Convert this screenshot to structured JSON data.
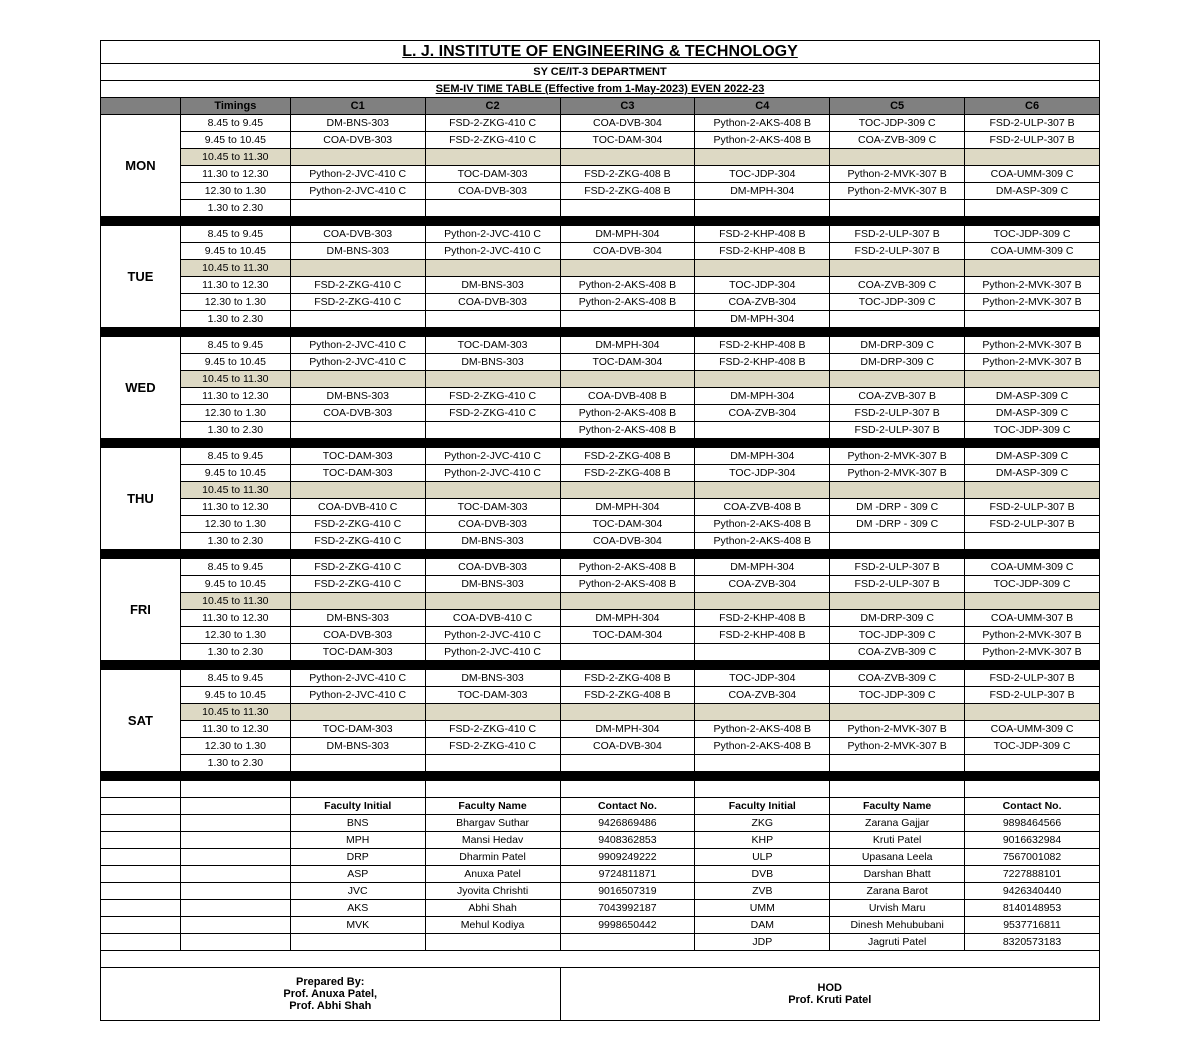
{
  "header": {
    "title": "L. J. INSTITUTE OF ENGINEERING & TECHNOLOGY",
    "dept": "SY CE/IT-3 DEPARTMENT",
    "sem": "SEM-IV TIME TABLE (Effective from 1-May-2023) EVEN 2022-23"
  },
  "columns": [
    "Timings",
    "C1",
    "C2",
    "C3",
    "C4",
    "C5",
    "C6"
  ],
  "slots": [
    "8.45 to 9.45",
    "9.45 to 10.45",
    "10.45 to 11.30",
    "11.30 to 12.30",
    "12.30 to 1.30",
    "1.30 to 2.30"
  ],
  "days": [
    {
      "name": "MON",
      "rows": [
        [
          "DM-BNS-303",
          "FSD-2-ZKG-410 C",
          "COA-DVB-304",
          "Python-2-AKS-408 B",
          "TOC-JDP-309 C",
          "FSD-2-ULP-307 B"
        ],
        [
          "COA-DVB-303",
          "FSD-2-ZKG-410 C",
          "TOC-DAM-304",
          "Python-2-AKS-408 B",
          "COA-ZVB-309 C",
          "FSD-2-ULP-307 B"
        ],
        [
          "",
          "",
          "",
          "",
          "",
          ""
        ],
        [
          "Python-2-JVC-410 C",
          "TOC-DAM-303",
          "FSD-2-ZKG-408 B",
          "TOC-JDP-304",
          "Python-2-MVK-307 B",
          "COA-UMM-309 C"
        ],
        [
          "Python-2-JVC-410 C",
          "COA-DVB-303",
          "FSD-2-ZKG-408 B",
          "DM-MPH-304",
          "Python-2-MVK-307 B",
          "DM-ASP-309 C"
        ],
        [
          "",
          "",
          "",
          "",
          "",
          ""
        ]
      ]
    },
    {
      "name": "TUE",
      "rows": [
        [
          "COA-DVB-303",
          "Python-2-JVC-410 C",
          "DM-MPH-304",
          "FSD-2-KHP-408 B",
          "FSD-2-ULP-307 B",
          "TOC-JDP-309 C"
        ],
        [
          "DM-BNS-303",
          "Python-2-JVC-410 C",
          "COA-DVB-304",
          "FSD-2-KHP-408 B",
          "FSD-2-ULP-307 B",
          "COA-UMM-309 C"
        ],
        [
          "",
          "",
          "",
          "",
          "",
          ""
        ],
        [
          "FSD-2-ZKG-410 C",
          "DM-BNS-303",
          "Python-2-AKS-408 B",
          "TOC-JDP-304",
          "COA-ZVB-309 C",
          "Python-2-MVK-307 B"
        ],
        [
          "FSD-2-ZKG-410 C",
          "COA-DVB-303",
          "Python-2-AKS-408 B",
          "COA-ZVB-304",
          "TOC-JDP-309 C",
          "Python-2-MVK-307 B"
        ],
        [
          "",
          "",
          "",
          "DM-MPH-304",
          "",
          ""
        ]
      ]
    },
    {
      "name": "WED",
      "rows": [
        [
          "Python-2-JVC-410 C",
          "TOC-DAM-303",
          "DM-MPH-304",
          "FSD-2-KHP-408 B",
          "DM-DRP-309 C",
          "Python-2-MVK-307 B"
        ],
        [
          "Python-2-JVC-410 C",
          "DM-BNS-303",
          "TOC-DAM-304",
          "FSD-2-KHP-408 B",
          "DM-DRP-309 C",
          "Python-2-MVK-307 B"
        ],
        [
          "",
          "",
          "",
          "",
          "",
          ""
        ],
        [
          "DM-BNS-303",
          "FSD-2-ZKG-410 C",
          "COA-DVB-408 B",
          "DM-MPH-304",
          "COA-ZVB-307 B",
          "DM-ASP-309 C"
        ],
        [
          "COA-DVB-303",
          "FSD-2-ZKG-410 C",
          "Python-2-AKS-408 B",
          "COA-ZVB-304",
          "FSD-2-ULP-307 B",
          "DM-ASP-309 C"
        ],
        [
          "",
          "",
          "Python-2-AKS-408 B",
          "",
          "FSD-2-ULP-307 B",
          "TOC-JDP-309 C"
        ]
      ]
    },
    {
      "name": "THU",
      "rows": [
        [
          "TOC-DAM-303",
          "Python-2-JVC-410 C",
          "FSD-2-ZKG-408 B",
          "DM-MPH-304",
          "Python-2-MVK-307 B",
          "DM-ASP-309 C"
        ],
        [
          "TOC-DAM-303",
          "Python-2-JVC-410 C",
          "FSD-2-ZKG-408 B",
          "TOC-JDP-304",
          "Python-2-MVK-307 B",
          "DM-ASP-309 C"
        ],
        [
          "",
          "",
          "",
          "",
          "",
          ""
        ],
        [
          "COA-DVB-410 C",
          "TOC-DAM-303",
          "DM-MPH-304",
          "COA-ZVB-408 B",
          "DM -DRP - 309 C",
          "FSD-2-ULP-307 B"
        ],
        [
          "FSD-2-ZKG-410 C",
          "COA-DVB-303",
          "TOC-DAM-304",
          "Python-2-AKS-408 B",
          "DM -DRP - 309 C",
          "FSD-2-ULP-307 B"
        ],
        [
          "FSD-2-ZKG-410 C",
          "DM-BNS-303",
          "COA-DVB-304",
          "Python-2-AKS-408 B",
          "",
          ""
        ]
      ]
    },
    {
      "name": "FRI",
      "rows": [
        [
          "FSD-2-ZKG-410 C",
          "COA-DVB-303",
          "Python-2-AKS-408 B",
          "DM-MPH-304",
          "FSD-2-ULP-307 B",
          "COA-UMM-309 C"
        ],
        [
          "FSD-2-ZKG-410 C",
          "DM-BNS-303",
          "Python-2-AKS-408 B",
          "COA-ZVB-304",
          "FSD-2-ULP-307 B",
          "TOC-JDP-309 C"
        ],
        [
          "",
          "",
          "",
          "",
          "",
          ""
        ],
        [
          "DM-BNS-303",
          "COA-DVB-410 C",
          "DM-MPH-304",
          "FSD-2-KHP-408 B",
          "DM-DRP-309 C",
          "COA-UMM-307 B"
        ],
        [
          "COA-DVB-303",
          "Python-2-JVC-410 C",
          "TOC-DAM-304",
          "FSD-2-KHP-408 B",
          "TOC-JDP-309 C",
          "Python-2-MVK-307 B"
        ],
        [
          "TOC-DAM-303",
          "Python-2-JVC-410 C",
          "",
          "",
          "COA-ZVB-309 C",
          "Python-2-MVK-307 B"
        ]
      ]
    },
    {
      "name": "SAT",
      "rows": [
        [
          "Python-2-JVC-410 C",
          "DM-BNS-303",
          "FSD-2-ZKG-408 B",
          "TOC-JDP-304",
          "COA-ZVB-309 C",
          "FSD-2-ULP-307 B"
        ],
        [
          "Python-2-JVC-410 C",
          "TOC-DAM-303",
          "FSD-2-ZKG-408 B",
          "COA-ZVB-304",
          "TOC-JDP-309 C",
          "FSD-2-ULP-307 B"
        ],
        [
          "",
          "",
          "",
          "",
          "",
          ""
        ],
        [
          "TOC-DAM-303",
          "FSD-2-ZKG-410 C",
          "DM-MPH-304",
          "Python-2-AKS-408 B",
          "Python-2-MVK-307 B",
          "COA-UMM-309 C"
        ],
        [
          "DM-BNS-303",
          "FSD-2-ZKG-410 C",
          "COA-DVB-304",
          "Python-2-AKS-408 B",
          "Python-2-MVK-307 B",
          "TOC-JDP-309 C"
        ],
        [
          "",
          "",
          "",
          "",
          "",
          ""
        ]
      ]
    }
  ],
  "facultyHeaders": [
    "Faculty Initial",
    "Faculty Name",
    "Contact No.",
    "Faculty Initial",
    "Faculty Name",
    "Contact No."
  ],
  "faculty": [
    [
      "BNS",
      "Bhargav Suthar",
      "9426869486",
      "ZKG",
      "Zarana Gajjar",
      "9898464566"
    ],
    [
      "MPH",
      "Mansi Hedav",
      "9408362853",
      "KHP",
      "Kruti Patel",
      "9016632984"
    ],
    [
      "DRP",
      "Dharmin Patel",
      "9909249222",
      "ULP",
      "Upasana Leela",
      "7567001082"
    ],
    [
      "ASP",
      "Anuxa Patel",
      "9724811871",
      "DVB",
      "Darshan Bhatt",
      "7227888101"
    ],
    [
      "JVC",
      "Jyovita Chrishti",
      "9016507319",
      "ZVB",
      "Zarana Barot",
      "9426340440"
    ],
    [
      "AKS",
      "Abhi Shah",
      "7043992187",
      "UMM",
      "Urvish Maru",
      "8140148953"
    ],
    [
      "MVK",
      "Mehul Kodiya",
      "9998650442",
      "DAM",
      "Dinesh Mehububani",
      "9537716811"
    ],
    [
      "",
      "",
      "",
      "JDP",
      "Jagruti Patel",
      "8320573183"
    ]
  ],
  "signatures": {
    "left": "Prepared By:\nProf. Anuxa Patel,\nProf. Abhi Shah",
    "right": "HOD\nProf. Kruti Patel"
  }
}
